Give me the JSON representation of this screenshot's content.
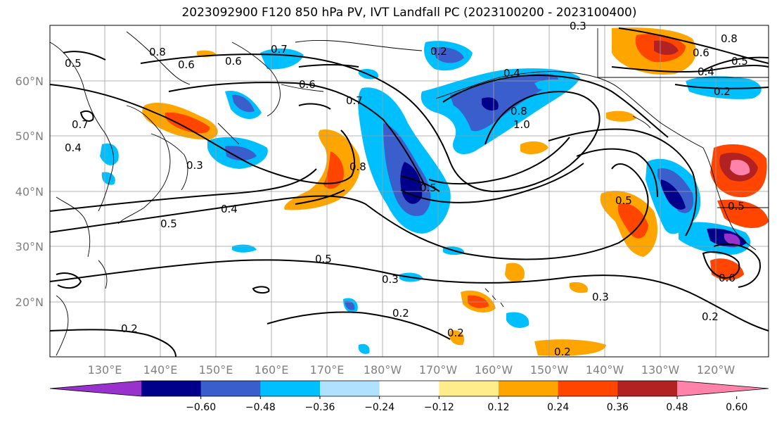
{
  "title": "2023092900 F120 850 hPa PV, IVT Landfall PC (2023100200 - 2023100400)",
  "lon_labels": [
    "130°E",
    "140°E",
    "150°E",
    "160°E",
    "170°E",
    "180°W",
    "170°W",
    "160°W",
    "150°W",
    "140°W",
    "130°W",
    "120°W"
  ],
  "lat_labels": [
    "60°N",
    "50°N",
    "40°N",
    "30°N",
    "20°N"
  ],
  "colorbar": {
    "ticks": [
      "−0.60",
      "−0.48",
      "−0.36",
      "−0.24",
      "−0.12",
      "0.12",
      "0.24",
      "0.36",
      "0.48",
      "0.60"
    ],
    "colors": [
      "#9932cc",
      "#00008b",
      "#3a5fcd",
      "#00bfff",
      "#b0e2ff",
      "#ffffff",
      "#ffec8b",
      "#ffa500",
      "#ff4500",
      "#b22222",
      "#ff82ab"
    ]
  },
  "contour_labels": [
    "0.8",
    "0.6",
    "0.5",
    "0.7",
    "0.6",
    "0.4",
    "0.5",
    "0.3",
    "0.5",
    "0.2",
    "0.6",
    "0.7",
    "0.4",
    "0.8",
    "1.0",
    "0.5",
    "0.3",
    "0.2",
    "0.4",
    "0.5",
    "0.2",
    "0.6",
    "0.8",
    "0.5",
    "0.4",
    "0.2",
    "0.6",
    "0.3",
    "0.2",
    "0.2",
    "0.2",
    "0.7",
    "0.8",
    "0.5",
    "0.3"
  ],
  "legend_palette": {
    "neg_strong": "#00008b",
    "neg_mid": "#3a5fcd",
    "neg_light": "#00bfff",
    "neg_pale": "#b0e2ff",
    "pos_pale": "#ffec8b",
    "pos_light": "#ffa500",
    "pos_mid": "#ff4500",
    "pos_strong": "#b22222",
    "pos_max": "#ff82ab"
  }
}
